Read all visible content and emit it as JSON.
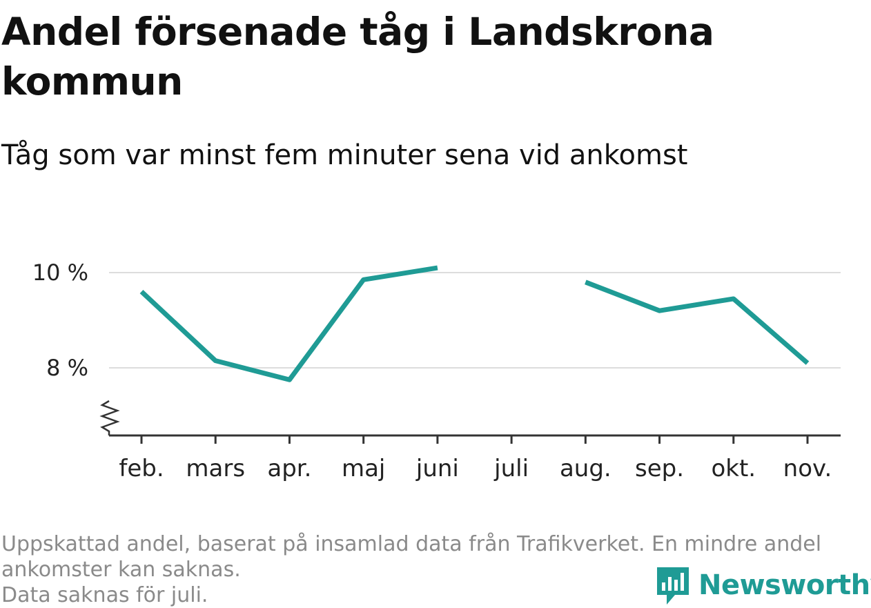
{
  "title": "Andel försenade tåg i Landskrona kommun",
  "subtitle": "Tåg som var minst fem minuter sena vid ankomst",
  "footer": {
    "line1": "Uppskattad andel, baserat på insamlad data från Trafikverket. En mindre andel ankomster kan saknas.",
    "line2": "Data saknas för juli."
  },
  "brand": {
    "name": "Newsworthy",
    "color": "#1f9b95"
  },
  "chart_data": {
    "type": "line",
    "categories": [
      "feb.",
      "mars",
      "apr.",
      "maj",
      "juni",
      "juli",
      "aug.",
      "sep.",
      "okt.",
      "nov."
    ],
    "series": [
      {
        "values": [
          9.6,
          8.15,
          7.75,
          9.85,
          10.1,
          null,
          9.8,
          9.2,
          9.45,
          8.1
        ],
        "color": "#1f9b95"
      }
    ],
    "yticks": [
      {
        "value": 8,
        "label": "8 %"
      },
      {
        "value": 10,
        "label": "10 %"
      }
    ],
    "ylim": [
      6.6,
      10.5
    ],
    "y_axis_break": true,
    "grid": true
  }
}
